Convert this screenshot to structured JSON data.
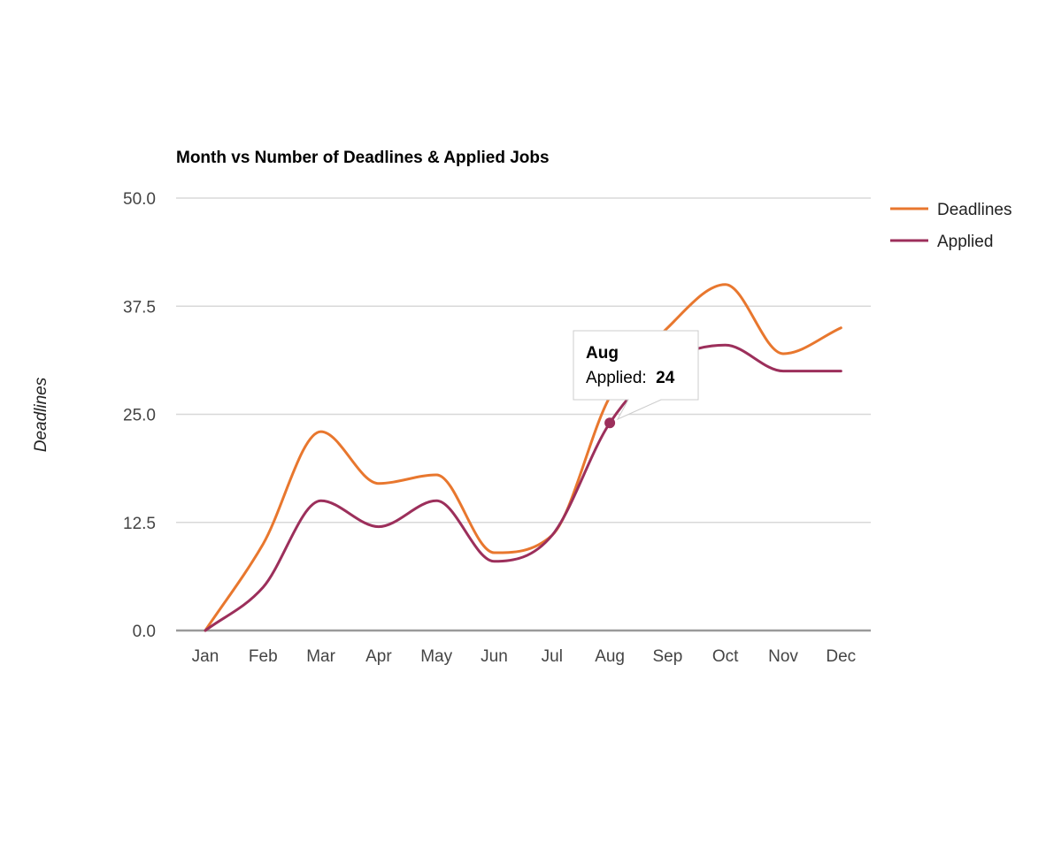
{
  "chart_data": {
    "type": "line",
    "title": "Month vs Number of Deadlines & Applied Jobs",
    "xlabel": "",
    "ylabel": "Deadlines",
    "categories": [
      "Jan",
      "Feb",
      "Mar",
      "Apr",
      "May",
      "Jun",
      "Jul",
      "Aug",
      "Sep",
      "Oct",
      "Nov",
      "Dec"
    ],
    "ylim": [
      0,
      50
    ],
    "yticks": [
      "0.0",
      "12.5",
      "25.0",
      "37.5",
      "50.0"
    ],
    "grid": true,
    "curve": "smooth",
    "legend_position": "right",
    "series": [
      {
        "name": "Deadlines",
        "color": "#e8772e",
        "values": [
          0,
          10,
          23,
          17,
          18,
          9,
          11,
          27,
          35,
          40,
          32,
          35
        ]
      },
      {
        "name": "Applied",
        "color": "#9c2f5b",
        "values": [
          0,
          5,
          15,
          12,
          15,
          8,
          11,
          24,
          31,
          33,
          30,
          30
        ]
      }
    ],
    "tooltip": {
      "category": "Aug",
      "series_label": "Applied:",
      "value": "24"
    }
  }
}
